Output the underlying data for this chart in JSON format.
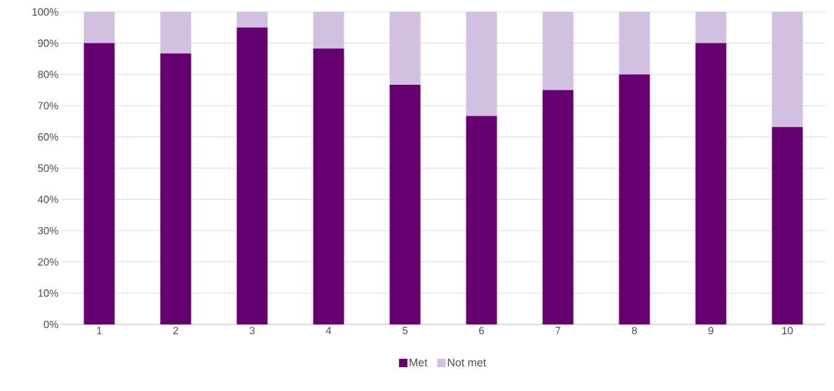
{
  "chart_data": {
    "type": "bar",
    "stacked": true,
    "categories": [
      "1",
      "2",
      "3",
      "4",
      "5",
      "6",
      "7",
      "8",
      "9",
      "10"
    ],
    "series": [
      {
        "name": "Met",
        "color": "#660070",
        "values": [
          90,
          86.7,
          95,
          88.3,
          76.7,
          66.7,
          75,
          80,
          90,
          63.2
        ]
      },
      {
        "name": "Not met",
        "color": "#d1c0e0",
        "values": [
          10,
          13.3,
          5,
          11.7,
          23.3,
          33.3,
          25,
          20,
          10,
          36.8
        ]
      }
    ],
    "ylim": [
      0,
      100
    ],
    "yticks": [
      {
        "value": 0,
        "label": "0%"
      },
      {
        "value": 10,
        "label": "10%"
      },
      {
        "value": 20,
        "label": "20%"
      },
      {
        "value": 30,
        "label": "30%"
      },
      {
        "value": 40,
        "label": "40%"
      },
      {
        "value": 50,
        "label": "50%"
      },
      {
        "value": 60,
        "label": "60%"
      },
      {
        "value": 70,
        "label": "70%"
      },
      {
        "value": 80,
        "label": "80%"
      },
      {
        "value": 90,
        "label": "90%"
      },
      {
        "value": 100,
        "label": "100%"
      }
    ],
    "grid": "y",
    "legend": "bottom"
  }
}
